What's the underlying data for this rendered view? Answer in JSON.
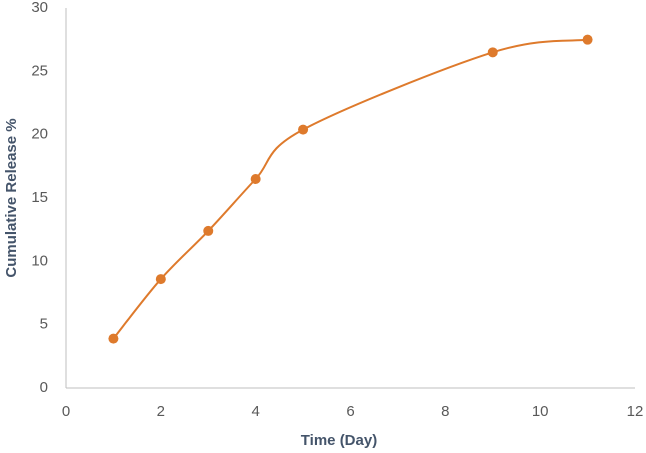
{
  "chart_data": {
    "type": "scatter-line",
    "x_label": "Time (Day)",
    "y_label": "Cumulative Release %",
    "x": [
      1,
      2,
      3,
      4,
      5,
      9,
      11
    ],
    "values": [
      3.9,
      8.6,
      12.4,
      16.5,
      20.4,
      26.5,
      27.5
    ],
    "color": "#de7a2c",
    "xlim": [
      0,
      12
    ],
    "xticks": [
      0,
      2,
      4,
      6,
      8,
      10,
      12
    ],
    "ylim": [
      0,
      30
    ],
    "yticks": [
      0,
      5,
      10,
      15,
      20,
      25,
      30
    ],
    "grid": false,
    "smooth": true
  }
}
